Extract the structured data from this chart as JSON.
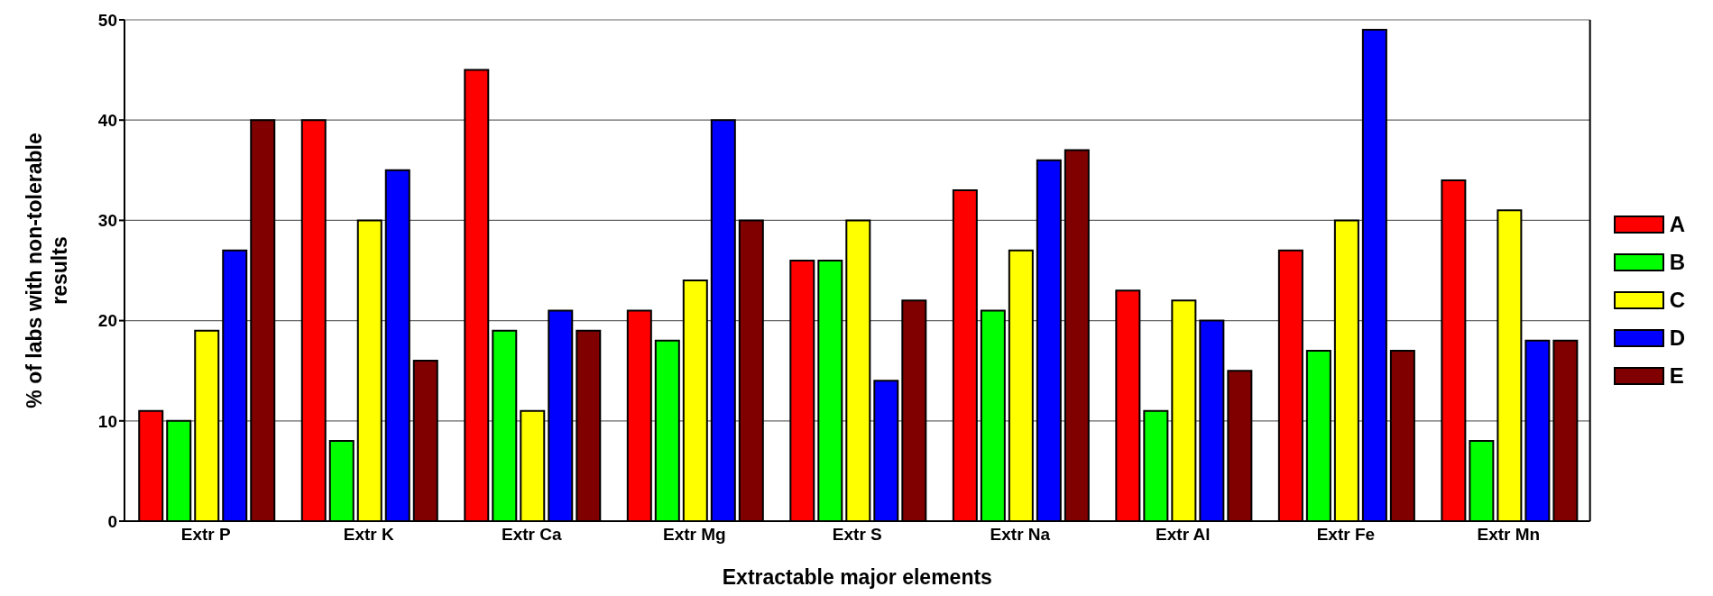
{
  "chart_data": {
    "type": "bar",
    "xlabel": "Extractable major elements",
    "ylabel": "% of labs with non-tolerable results",
    "categories": [
      "Extr P",
      "Extr K",
      "Extr Ca",
      "Extr Mg",
      "Extr S",
      "Extr Na",
      "Extr Al",
      "Extr Fe",
      "Extr Mn"
    ],
    "series": [
      {
        "name": "A",
        "color": "#ff0000",
        "values": [
          11,
          40,
          45,
          21,
          26,
          33,
          23,
          27,
          34
        ]
      },
      {
        "name": "B",
        "color": "#00ff00",
        "values": [
          10,
          8,
          19,
          18,
          26,
          21,
          11,
          17,
          8
        ]
      },
      {
        "name": "C",
        "color": "#ffff00",
        "values": [
          19,
          30,
          11,
          24,
          30,
          27,
          22,
          30,
          31
        ]
      },
      {
        "name": "D",
        "color": "#0000ff",
        "values": [
          27,
          35,
          21,
          40,
          14,
          36,
          20,
          49,
          18
        ]
      },
      {
        "name": "E",
        "color": "#800000",
        "values": [
          40,
          16,
          19,
          30,
          22,
          37,
          15,
          17,
          18
        ]
      }
    ],
    "ylim": [
      0,
      50
    ],
    "yticks": [
      0,
      10,
      20,
      30,
      40,
      50
    ],
    "grid": "y",
    "legend": "right"
  }
}
